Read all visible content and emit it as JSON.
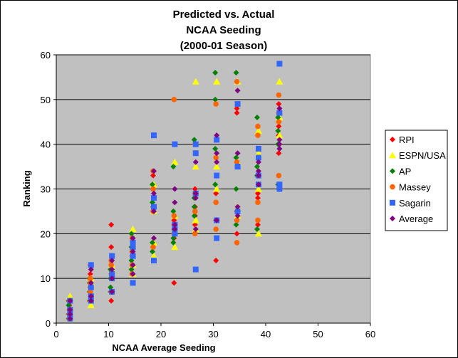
{
  "chart_data": {
    "type": "scatter",
    "title": [
      "Predicted vs. Actual",
      "NCAA Seeding",
      "(2000-01 Season)"
    ],
    "xlabel": "NCAA Average Seeding",
    "ylabel": "Ranking",
    "xlim": [
      0,
      60
    ],
    "ylim": [
      0,
      60
    ],
    "xticks": [
      0,
      10,
      20,
      30,
      40,
      50,
      60
    ],
    "yticks": [
      0,
      10,
      20,
      30,
      40,
      50,
      60
    ],
    "grid": "horizontal major",
    "legend": "right",
    "plot_background": "#c0c0c0",
    "x": [
      2.5,
      6.5,
      10.5,
      14.5,
      18.5,
      22.5,
      26.5,
      30.5,
      34.5,
      38.5,
      42.5
    ],
    "series": [
      {
        "name": "RPI",
        "color": "#ff0000",
        "marker": "diamond",
        "values": [
          [
            1,
            2,
            3,
            4
          ],
          [
            5,
            8,
            11,
            13
          ],
          [
            5,
            10,
            17,
            22
          ],
          [
            11,
            15,
            16,
            19
          ],
          [
            17,
            26,
            31,
            33
          ],
          [
            9,
            19,
            21,
            23
          ],
          [
            22,
            24,
            26,
            30
          ],
          [
            14,
            23,
            27,
            29
          ],
          [
            20,
            25,
            47,
            48
          ],
          [
            22,
            28,
            29,
            42
          ],
          [
            38,
            42,
            44,
            49
          ]
        ]
      },
      {
        "name": "ESPN/USA",
        "color": "#ffff00",
        "marker": "triangle",
        "values": [
          [
            1,
            2,
            3,
            6
          ],
          [
            4,
            6,
            9,
            10
          ],
          [
            7,
            10,
            12,
            13
          ],
          [
            11,
            13,
            18,
            21
          ],
          [
            15,
            18,
            25,
            31
          ],
          [
            17,
            21,
            24,
            36
          ],
          [
            21,
            23,
            35,
            54
          ],
          [
            30,
            35,
            54,
            54
          ],
          [
            24,
            26,
            36,
            54
          ],
          [
            20,
            30,
            38,
            43
          ],
          [
            30,
            42,
            46,
            54
          ]
        ]
      },
      {
        "name": "AP",
        "color": "#008000",
        "marker": "diamond",
        "values": [
          [
            1,
            2,
            4,
            5
          ],
          [
            5,
            7,
            9,
            10
          ],
          [
            7,
            8,
            10,
            12
          ],
          [
            12,
            14,
            17,
            20
          ],
          [
            16,
            18,
            27,
            31
          ],
          [
            18,
            19,
            25,
            35
          ],
          [
            24,
            26,
            28,
            41
          ],
          [
            31,
            39,
            50,
            56
          ],
          [
            22,
            30,
            37,
            56
          ],
          [
            21,
            33,
            35,
            46
          ],
          [
            31,
            40,
            43,
            46
          ]
        ]
      },
      {
        "name": "Massey",
        "color": "#ff6600",
        "marker": "circle",
        "values": [
          [
            1,
            2,
            3,
            5
          ],
          [
            5,
            7,
            9,
            10
          ],
          [
            7,
            11,
            13,
            14
          ],
          [
            11,
            13,
            16,
            19
          ],
          [
            17,
            25,
            30,
            34
          ],
          [
            20,
            22,
            24,
            50
          ],
          [
            20,
            25,
            29,
            40
          ],
          [
            21,
            27,
            37,
            49
          ],
          [
            18,
            23,
            36,
            54
          ],
          [
            23,
            27,
            42,
            44
          ],
          [
            33,
            45,
            47,
            51
          ]
        ]
      },
      {
        "name": "Sagarin",
        "color": "#3366ff",
        "marker": "square",
        "values": [
          [
            1,
            2,
            3,
            5
          ],
          [
            5,
            6,
            8,
            13
          ],
          [
            7,
            10,
            11,
            15
          ],
          [
            9,
            15,
            17,
            18
          ],
          [
            14,
            26,
            28,
            42
          ],
          [
            20,
            21,
            22,
            40
          ],
          [
            12,
            29,
            38,
            40
          ],
          [
            19,
            23,
            33,
            41
          ],
          [
            25,
            35,
            35,
            49
          ],
          [
            31,
            33,
            37,
            39
          ],
          [
            30,
            31,
            47,
            58
          ]
        ]
      },
      {
        "name": "Average",
        "color": "#800080",
        "marker": "diamond",
        "values": [
          [
            1,
            2,
            3,
            5
          ],
          [
            5,
            6,
            9,
            12
          ],
          [
            7,
            10,
            12,
            14
          ],
          [
            11,
            13,
            16,
            19
          ],
          [
            19,
            25,
            29,
            34
          ],
          [
            21,
            22,
            27,
            30
          ],
          [
            21,
            28,
            29,
            36
          ],
          [
            23,
            36,
            38,
            42
          ],
          [
            24,
            26,
            38,
            52
          ],
          [
            31,
            33,
            34,
            36
          ],
          [
            39,
            40,
            41,
            48
          ]
        ]
      }
    ]
  }
}
